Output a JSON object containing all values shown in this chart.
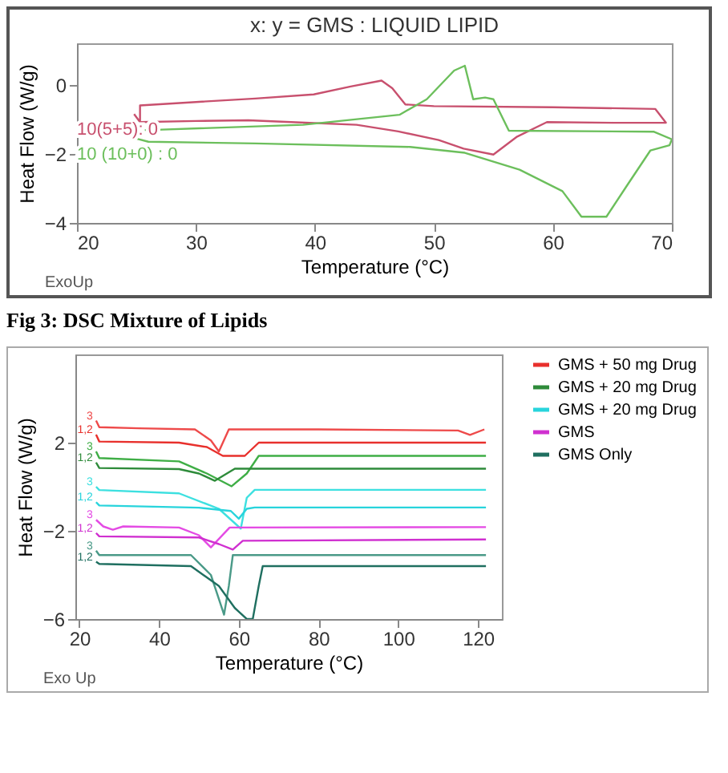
{
  "chart_data": [
    {
      "type": "line",
      "title": "x: y = GMS : LIQUID LIPID",
      "xlabel": "Temperature (°C)",
      "ylabel": "Heat Flow (W/g)",
      "xlim": [
        20,
        70
      ],
      "xticks": [
        20,
        30,
        40,
        50,
        60,
        70
      ],
      "ylim": [
        -4,
        1.2
      ],
      "yticks": [
        0,
        -2,
        -4
      ],
      "grid": false,
      "legend": false,
      "series": [
        {
          "name": "10(5+5): 0",
          "color": "#c8506e",
          "x": [
            24.8,
            25.3,
            30,
            34.4,
            38,
            43.5,
            47,
            50.4,
            52.5,
            55,
            57,
            59.5,
            65,
            69.5,
            68.6,
            60,
            50,
            47.6,
            46.5,
            45.6,
            43,
            39.9,
            35,
            30,
            25.3,
            25.3
          ],
          "values": [
            -0.85,
            -1.08,
            -1.05,
            -1.03,
            -1.08,
            -1.16,
            -1.35,
            -1.6,
            -1.85,
            -2.02,
            -1.5,
            -1.08,
            -1.1,
            -1.1,
            -0.7,
            -0.65,
            -0.62,
            -0.57,
            -0.1,
            0.12,
            -0.05,
            -0.28,
            -0.4,
            -0.5,
            -0.6,
            -1.08
          ]
        },
        {
          "name": "10 (10+0) : 0",
          "color": "#6cbf5c",
          "x": [
            25,
            26,
            35,
            48,
            52.6,
            57.2,
            60.8,
            62.4,
            64.5,
            66.3,
            68.2,
            69.8,
            70,
            68.5,
            56.3,
            55,
            54.3,
            53.3,
            52.6,
            51.7,
            49.4,
            47.1,
            39,
            26.2,
            25.3
          ],
          "values": [
            -1.56,
            -1.65,
            -1.7,
            -1.8,
            -1.97,
            -2.46,
            -3.08,
            -3.82,
            -3.82,
            -2.88,
            -1.9,
            -1.75,
            -1.58,
            -1.36,
            -1.33,
            -0.42,
            -0.37,
            -0.42,
            0.55,
            0.41,
            -0.42,
            -0.87,
            -1.16,
            -1.31,
            -1.31
          ]
        }
      ],
      "annotations": [
        "ExoUp",
        "Fig 3: DSC Mixture of Lipids"
      ]
    },
    {
      "type": "line",
      "xlabel": "Temperature (°C)",
      "ylabel": "Heat Flow (W/g)",
      "xlim": [
        19,
        126
      ],
      "xticks": [
        20,
        40,
        60,
        80,
        100,
        120
      ],
      "ylim": [
        -6,
        6
      ],
      "yticks": [
        2,
        -2,
        -6
      ],
      "grid": false,
      "legend": "right",
      "series": [
        {
          "color": "#ee4a4a",
          "x": [
            24.2,
            25,
            35,
            49,
            53,
            55,
            57.5,
            80,
            115,
            118,
            121.6
          ],
          "values": [
            3.0,
            2.7,
            2.65,
            2.6,
            2.1,
            1.6,
            2.6,
            2.6,
            2.55,
            2.35,
            2.6
          ]
        },
        {
          "name": "GMS + 50 mg Drug",
          "color": "#e8302c",
          "x": [
            24.2,
            25,
            45,
            52,
            56,
            61.5,
            65,
            100,
            122
          ],
          "values": [
            2.36,
            2.05,
            2.0,
            1.8,
            1.4,
            1.4,
            2.0,
            2.0,
            2.0
          ]
        },
        {
          "color": "#3fae46",
          "x": [
            24.2,
            25,
            45,
            52,
            58.2,
            62,
            65,
            122
          ],
          "values": [
            1.6,
            1.3,
            1.15,
            0.6,
            0.02,
            0.6,
            1.4,
            1.4
          ]
        },
        {
          "name": "GMS + 20 mg Drug",
          "color": "#2e8b3a",
          "x": [
            24.2,
            25,
            45,
            50,
            54,
            57,
            59,
            122
          ],
          "values": [
            1.1,
            0.85,
            0.8,
            0.6,
            0.27,
            0.6,
            0.82,
            0.82
          ]
        },
        {
          "color": "#3de0e0",
          "x": [
            24.2,
            25,
            45,
            55,
            60.5,
            62,
            64,
            122
          ],
          "values": [
            0,
            -0.15,
            -0.3,
            -1.0,
            -1.9,
            -0.5,
            -0.14,
            -0.14
          ]
        },
        {
          "name": "GMS + 20 mg Drug",
          "color": "#28d4dc",
          "x": [
            24.2,
            25,
            50,
            58,
            60,
            62,
            64,
            122
          ],
          "values": [
            -0.7,
            -0.85,
            -0.95,
            -1.1,
            -1.45,
            -1.0,
            -0.94,
            -0.94
          ]
        },
        {
          "color": "#e44be4",
          "x": [
            24.2,
            26,
            28.4,
            31,
            45,
            50,
            53,
            57.7,
            122
          ],
          "values": [
            -1.5,
            -1.8,
            -1.95,
            -1.8,
            -1.85,
            -2.2,
            -2.75,
            -1.85,
            -1.83
          ]
        },
        {
          "name": "GMS",
          "color": "#d030d0",
          "x": [
            24.2,
            25,
            50,
            55,
            58.5,
            61,
            122
          ],
          "values": [
            -2.1,
            -2.25,
            -2.3,
            -2.6,
            -2.85,
            -2.45,
            -2.39
          ]
        },
        {
          "color": "#4a9a88",
          "x": [
            24.2,
            25,
            48,
            53,
            56.3,
            57.5,
            58.5,
            122
          ],
          "values": [
            -2.9,
            -3.1,
            -3.1,
            -4.0,
            -5.8,
            -4.5,
            -3.1,
            -3.1
          ]
        },
        {
          "name": "GMS Only",
          "color": "#1f6f60",
          "x": [
            24.2,
            25,
            48,
            55,
            59,
            62,
            63.5,
            65,
            66,
            122
          ],
          "values": [
            -3.4,
            -3.5,
            -3.6,
            -4.5,
            -5.5,
            -6.0,
            -6.0,
            -4.5,
            -3.6,
            -3.6
          ]
        }
      ],
      "annotations": [
        "Exo Up",
        "3",
        "1,2",
        "3",
        "1,2",
        "3",
        "1,2",
        "3",
        "1,2",
        "3",
        "1,2"
      ]
    }
  ]
}
